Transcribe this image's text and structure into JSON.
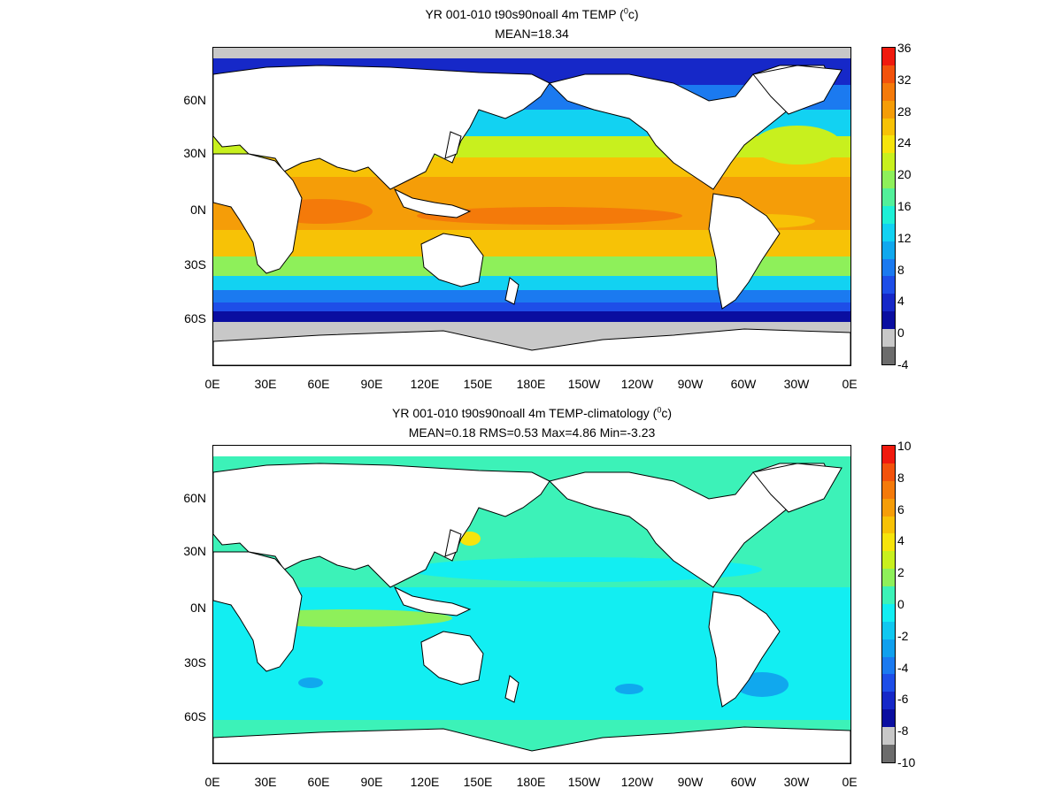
{
  "panels": [
    {
      "title_main": "YR 001-010 t90s90noall 4m TEMP (",
      "title_unit_sup": "0",
      "title_unit_tail": "c)",
      "subtitle": "MEAN=18.34",
      "colorbar": {
        "labels": [
          "36",
          "32",
          "28",
          "24",
          "20",
          "16",
          "12",
          "8",
          "4",
          "0",
          "-4"
        ],
        "colors": [
          "#f01a0e",
          "#f2520c",
          "#f47a0a",
          "#f59d08",
          "#f7c206",
          "#f6e40c",
          "#c8f01e",
          "#8ef05a",
          "#52f09a",
          "#1ef0d6",
          "#12d2f2",
          "#10a8ee",
          "#1b7af0",
          "#1e4ee8",
          "#1628c8",
          "#0a0ea0",
          "#c8c8c8",
          "#6c6c6c"
        ]
      },
      "stats": {
        "mean": 18.34
      }
    },
    {
      "title_main": "YR 001-010 t90s90noall 4m TEMP-climatology (",
      "title_unit_sup": "0",
      "title_unit_tail": "c)",
      "subtitle": "MEAN=0.18   RMS=0.53   Max=4.86   Min=-3.23",
      "colorbar": {
        "labels": [
          "10",
          "8",
          "6",
          "4",
          "2",
          "0",
          "-2",
          "-4",
          "-6",
          "-8",
          "-10"
        ],
        "colors": [
          "#f01a0e",
          "#f2520c",
          "#f47a0a",
          "#f59d08",
          "#f7c206",
          "#f6e40c",
          "#c8f01e",
          "#8ef05a",
          "#3cf2b8",
          "#12eef2",
          "#10c8f0",
          "#10a0ee",
          "#1b7af0",
          "#1e4ee8",
          "#1628c8",
          "#0a0ea0",
          "#c8c8c8",
          "#6c6c6c"
        ]
      },
      "stats": {
        "mean": 0.18,
        "rms": 0.53,
        "max": 4.86,
        "min": -3.23
      }
    }
  ],
  "axes": {
    "x_ticks": [
      "0E",
      "30E",
      "60E",
      "90E",
      "120E",
      "150E",
      "180E",
      "150W",
      "120W",
      "90W",
      "60W",
      "30W",
      "0E"
    ],
    "y_ticks": [
      "60N",
      "30N",
      "0N",
      "30S",
      "60S"
    ]
  },
  "colors": {
    "land": "#ffffff",
    "ice": "#c8c8c8",
    "anomaly_background": "#3cf2b8",
    "anomaly_cold": "#12eef2"
  }
}
